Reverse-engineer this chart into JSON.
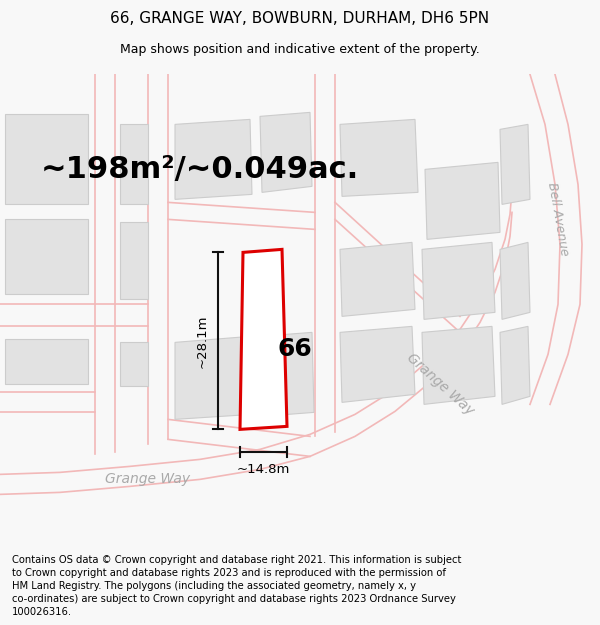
{
  "title": "66, GRANGE WAY, BOWBURN, DURHAM, DH6 5PN",
  "subtitle": "Map shows position and indicative extent of the property.",
  "area_label": "~198m²/~0.049ac.",
  "dim_height": "~28.1m",
  "dim_width": "~14.8m",
  "number_label": "66",
  "street_label_grange_bottom": "Grange Way",
  "street_label_grange_right": "Grange Way",
  "street_label_bell": "Bell Avenue",
  "footer_text": "Contains OS data © Crown copyright and database right 2021. This information is subject to Crown copyright and database rights 2023 and is reproduced with the permission of HM Land Registry. The polygons (including the associated geometry, namely x, y co-ordinates) are subject to Crown copyright and database rights 2023 Ordnance Survey 100026316.",
  "bg_color": "#f8f8f8",
  "map_bg": "#ffffff",
  "road_color": "#f2b8b8",
  "building_fill": "#e2e2e2",
  "building_stroke": "#cccccc",
  "plot_fill": "#ffffff",
  "plot_stroke": "#dd0000",
  "dim_line_color": "#111111",
  "road_label_color": "#aaaaaa",
  "title_fontsize": 11,
  "subtitle_fontsize": 9,
  "area_fontsize": 22,
  "number_fontsize": 18,
  "dim_fontsize": 9.5,
  "footer_fontsize": 7.2,
  "road_lw": 1.2,
  "plot_lw": 2.2,
  "dim_lw": 1.5
}
